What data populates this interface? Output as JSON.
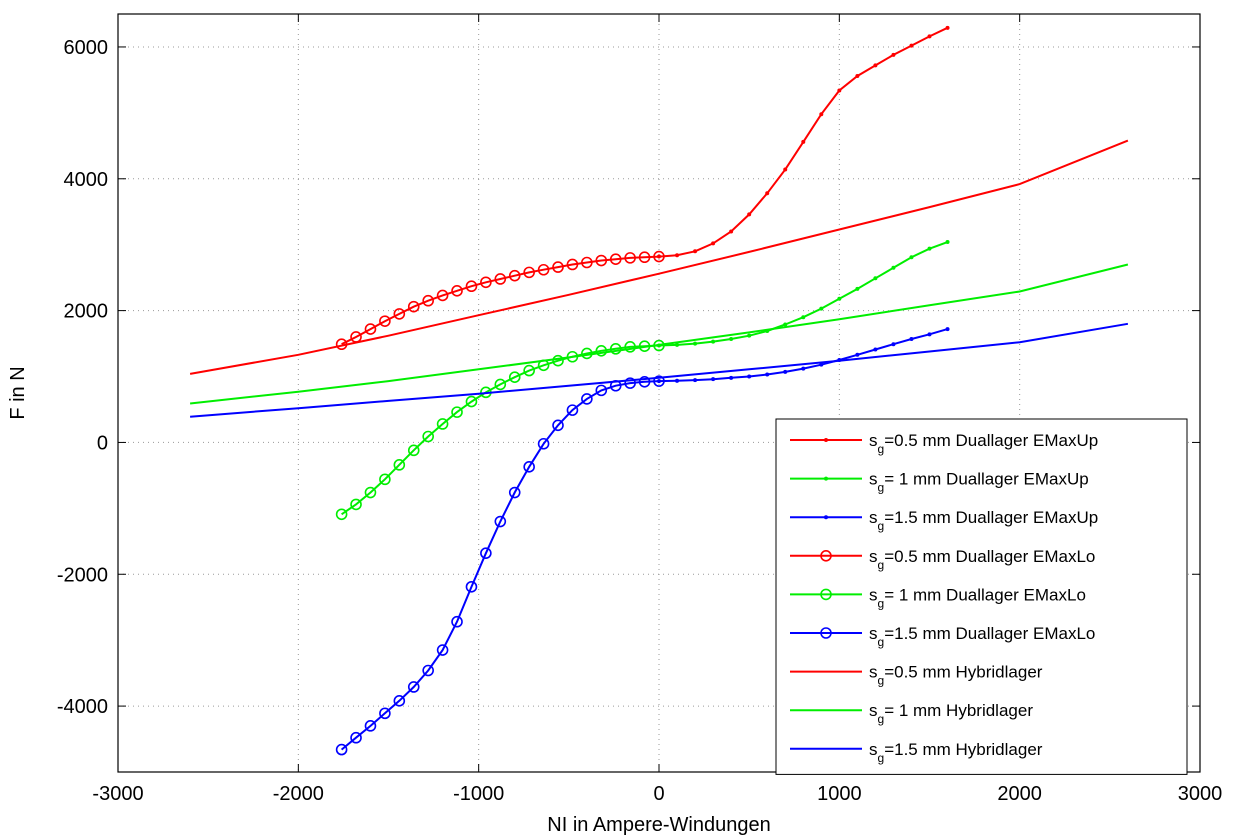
{
  "chart_data": {
    "type": "line",
    "title": "",
    "xlabel": "NI in Ampere-Windungen",
    "ylabel": "F in N",
    "xlim": [
      -3000,
      3000
    ],
    "ylim": [
      -5000,
      6500
    ],
    "xticks": [
      -3000,
      -2000,
      -1000,
      0,
      1000,
      2000,
      3000
    ],
    "yticks": [
      -4000,
      -2000,
      0,
      2000,
      4000,
      6000
    ],
    "xtick_labels": [
      "-3000",
      "-2000",
      "-1000",
      "0",
      "1000",
      "2000",
      "3000"
    ],
    "ytick_labels": [
      "-4000",
      "-2000",
      "0",
      "2000",
      "4000",
      "6000"
    ],
    "grid": true,
    "legend_position": "bottom-right",
    "series": [
      {
        "name": "s_g=0.5 mm Duallager EMaxUp",
        "legend_prefix": "s",
        "legend_sub": "g",
        "legend_suffix": "=0.5 mm Duallager EMaxUp",
        "color": "#ff0000",
        "marker": "dot",
        "x": [
          0,
          100,
          200,
          300,
          400,
          500,
          600,
          700,
          800,
          900,
          1000,
          1100,
          1200,
          1300,
          1400,
          1500,
          1600
        ],
        "y": [
          2820,
          2840,
          2900,
          3020,
          3200,
          3460,
          3780,
          4140,
          4560,
          4980,
          5340,
          5560,
          5720,
          5880,
          6020,
          6160,
          6290
        ]
      },
      {
        "name": "s_g= 1 mm Duallager EMaxUp",
        "legend_prefix": "s",
        "legend_sub": "g",
        "legend_suffix": "=  1 mm Duallager EMaxUp",
        "color": "#00ee00",
        "marker": "dot",
        "x": [
          0,
          100,
          200,
          300,
          400,
          500,
          600,
          700,
          800,
          900,
          1000,
          1100,
          1200,
          1300,
          1400,
          1500,
          1600
        ],
        "y": [
          1470,
          1480,
          1500,
          1530,
          1570,
          1620,
          1690,
          1790,
          1900,
          2030,
          2180,
          2330,
          2490,
          2650,
          2810,
          2940,
          3040
        ]
      },
      {
        "name": "s_g=1.5 mm Duallager EMaxUp",
        "legend_prefix": "s",
        "legend_sub": "g",
        "legend_suffix": "=1.5 mm Duallager EMaxUp",
        "color": "#0000ff",
        "marker": "dot",
        "x": [
          0,
          100,
          200,
          300,
          400,
          500,
          600,
          700,
          800,
          900,
          1000,
          1100,
          1200,
          1300,
          1400,
          1500,
          1600
        ],
        "y": [
          930,
          935,
          945,
          960,
          980,
          1000,
          1030,
          1070,
          1120,
          1180,
          1250,
          1330,
          1410,
          1490,
          1570,
          1640,
          1720
        ]
      },
      {
        "name": "s_g=0.5 mm Duallager EMaxLo",
        "legend_prefix": "s",
        "legend_sub": "g",
        "legend_suffix": "=0.5 mm Duallager EMaxLo",
        "color": "#ff0000",
        "marker": "circle",
        "x": [
          -1760,
          -1680,
          -1600,
          -1520,
          -1440,
          -1360,
          -1280,
          -1200,
          -1120,
          -1040,
          -960,
          -880,
          -800,
          -720,
          -640,
          -560,
          -480,
          -400,
          -320,
          -240,
          -160,
          -80,
          0
        ],
        "y": [
          1490,
          1600,
          1720,
          1840,
          1950,
          2060,
          2150,
          2230,
          2300,
          2370,
          2430,
          2480,
          2530,
          2580,
          2620,
          2660,
          2700,
          2730,
          2760,
          2780,
          2800,
          2810,
          2820
        ]
      },
      {
        "name": "s_g= 1 mm Duallager EMaxLo",
        "legend_prefix": "s",
        "legend_sub": "g",
        "legend_suffix": "=  1 mm Duallager EMaxLo",
        "color": "#00ee00",
        "marker": "circle",
        "x": [
          -1760,
          -1680,
          -1600,
          -1520,
          -1440,
          -1360,
          -1280,
          -1200,
          -1120,
          -1040,
          -960,
          -880,
          -800,
          -720,
          -640,
          -560,
          -480,
          -400,
          -320,
          -240,
          -160,
          -80,
          0
        ],
        "y": [
          -1090,
          -940,
          -760,
          -560,
          -340,
          -120,
          90,
          280,
          460,
          620,
          760,
          880,
          990,
          1090,
          1170,
          1240,
          1300,
          1350,
          1390,
          1420,
          1450,
          1460,
          1470
        ]
      },
      {
        "name": "s_g=1.5 mm Duallager EMaxLo",
        "legend_prefix": "s",
        "legend_sub": "g",
        "legend_suffix": "=1.5 mm Duallager EMaxLo",
        "color": "#0000ff",
        "marker": "circle",
        "x": [
          -1760,
          -1680,
          -1600,
          -1520,
          -1440,
          -1360,
          -1280,
          -1200,
          -1120,
          -1040,
          -960,
          -880,
          -800,
          -720,
          -640,
          -560,
          -480,
          -400,
          -320,
          -240,
          -160,
          -80,
          0
        ],
        "y": [
          -4660,
          -4480,
          -4300,
          -4110,
          -3920,
          -3710,
          -3460,
          -3150,
          -2720,
          -2190,
          -1680,
          -1200,
          -760,
          -370,
          -20,
          260,
          490,
          660,
          790,
          860,
          900,
          920,
          930
        ]
      },
      {
        "name": "s_g=0.5 mm Hybridlager",
        "legend_prefix": "s",
        "legend_sub": "g",
        "legend_suffix": "=0.5 mm Hybridlager",
        "color": "#ff0000",
        "marker": "none",
        "x": [
          -2600,
          -2000,
          -1500,
          -1000,
          -500,
          0,
          500,
          1000,
          1500,
          2000,
          2600
        ],
        "y": [
          1040,
          1330,
          1620,
          1930,
          2240,
          2560,
          2890,
          3230,
          3570,
          3920,
          4580
        ]
      },
      {
        "name": "s_g= 1 mm Hybridlager",
        "legend_prefix": "s",
        "legend_sub": "g",
        "legend_suffix": "=  1 mm Hybridlager",
        "color": "#00ee00",
        "marker": "none",
        "x": [
          -2600,
          -2000,
          -1500,
          -1000,
          -500,
          0,
          500,
          1000,
          1500,
          2000,
          2600
        ],
        "y": [
          590,
          770,
          930,
          1110,
          1290,
          1480,
          1670,
          1870,
          2080,
          2290,
          2700
        ]
      },
      {
        "name": "s_g=1.5 mm Hybridlager",
        "legend_prefix": "s",
        "legend_sub": "g",
        "legend_suffix": "=1.5 mm Hybridlager",
        "color": "#0000ff",
        "marker": "none",
        "x": [
          -2600,
          -2000,
          -1500,
          -1000,
          -500,
          0,
          500,
          1000,
          1500,
          2000,
          2600
        ],
        "y": [
          390,
          520,
          630,
          740,
          860,
          980,
          1110,
          1240,
          1380,
          1520,
          1800
        ]
      }
    ]
  }
}
